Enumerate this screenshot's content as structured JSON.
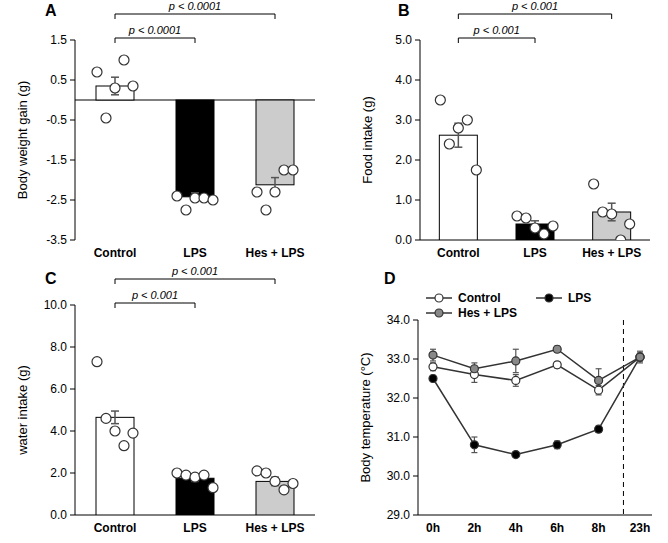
{
  "chart_data": [
    {
      "type": "bar",
      "panel": "A",
      "y_label": "Body weight gain (g)",
      "categories": [
        "Control",
        "LPS",
        "Hes + LPS"
      ],
      "values": [
        0.35,
        -2.42,
        -2.12
      ],
      "errors": [
        0.22,
        0.1,
        0.18
      ],
      "colors": [
        "#ffffff",
        "#000000",
        "#cccccc"
      ],
      "points": [
        [
          0.7,
          -0.45,
          0.3,
          1.0,
          0.35
        ],
        [
          -2.4,
          -2.75,
          -2.45,
          -2.45,
          -2.5
        ],
        [
          -2.3,
          -2.75,
          -2.3,
          -1.75,
          -1.75
        ]
      ],
      "ylim": [
        -3.5,
        1.5
      ],
      "yticks": [
        -3.5,
        -2.5,
        -1.5,
        -0.5,
        0.5,
        1.5
      ],
      "grid": false,
      "annotations": [
        {
          "text": "p < 0.0001",
          "between": [
            "Control",
            "LPS"
          ]
        },
        {
          "text": "p < 0.0001",
          "between": [
            "Control",
            "Hes + LPS"
          ]
        }
      ]
    },
    {
      "type": "bar",
      "panel": "B",
      "y_label": "Food intake (g)",
      "categories": [
        "Control",
        "LPS",
        "Hes + LPS"
      ],
      "values": [
        2.62,
        0.4,
        0.7
      ],
      "errors": [
        0.3,
        0.08,
        0.22
      ],
      "colors": [
        "#ffffff",
        "#000000",
        "#cccccc"
      ],
      "points": [
        [
          3.5,
          2.4,
          2.8,
          3.0,
          1.75
        ],
        [
          0.6,
          0.55,
          0.3,
          0.15,
          0.35
        ],
        [
          1.4,
          0.7,
          0.65,
          0.0,
          0.4
        ]
      ],
      "ylim": [
        0,
        5
      ],
      "yticks": [
        {
          "value": 0,
          "label": "0.0"
        },
        {
          "value": 1,
          "label": "1.0"
        },
        {
          "value": 2,
          "label": "2.0"
        },
        {
          "value": 3,
          "label": "3.0"
        },
        {
          "value": 4,
          "label": "4.0"
        },
        {
          "value": 5,
          "label": "5.0"
        }
      ],
      "grid": false,
      "annotations": [
        {
          "text": "p < 0.001",
          "between": [
            "Control",
            "LPS"
          ]
        },
        {
          "text": "p < 0.001",
          "between": [
            "Control",
            "Hes + LPS"
          ]
        }
      ]
    },
    {
      "type": "bar",
      "panel": "C",
      "y_label": "water intake (g)",
      "categories": [
        "Control",
        "LPS",
        "Hes + LPS"
      ],
      "values": [
        4.65,
        1.75,
        1.6
      ],
      "errors": [
        0.3,
        0.15,
        0.2
      ],
      "colors": [
        "#ffffff",
        "#000000",
        "#cccccc"
      ],
      "points": [
        [
          7.3,
          4.6,
          4.0,
          3.3,
          3.9
        ],
        [
          2.0,
          1.9,
          1.8,
          1.9,
          1.3
        ],
        [
          2.1,
          2.0,
          1.6,
          1.2,
          1.5
        ]
      ],
      "ylim": [
        0,
        10
      ],
      "yticks": [
        {
          "value": 0,
          "label": "0.0"
        },
        {
          "value": 2,
          "label": "2.0"
        },
        {
          "value": 4,
          "label": "4.0"
        },
        {
          "value": 6,
          "label": "6.0"
        },
        {
          "value": 8,
          "label": "8.0"
        },
        {
          "value": 10,
          "label": "10.0"
        }
      ],
      "grid": false,
      "annotations": [
        {
          "text": "p < 0.001",
          "between": [
            "Control",
            "LPS"
          ]
        },
        {
          "text": "p < 0.001",
          "between": [
            "Control",
            "Hes + LPS"
          ]
        }
      ]
    },
    {
      "type": "line",
      "panel": "D",
      "y_label": "Body temperature (°C)",
      "categories": [
        "0h",
        "2h",
        "4h",
        "6h",
        "8h",
        "23h"
      ],
      "series": [
        {
          "name": "Control",
          "color": "#ffffff",
          "marker": "circle",
          "values": [
            32.8,
            32.6,
            32.45,
            32.85,
            32.2,
            33.05
          ],
          "errors": [
            0.1,
            0.2,
            0.15,
            0.08,
            0.12,
            0.1
          ]
        },
        {
          "name": "LPS",
          "color": "#000000",
          "marker": "circle",
          "values": [
            32.5,
            30.8,
            30.55,
            30.8,
            31.2,
            33.05
          ],
          "errors": [
            0.08,
            0.2,
            0.05,
            0.1,
            0.08,
            0.1
          ]
        },
        {
          "name": "Hes + LPS",
          "color": "#888888",
          "marker": "circle",
          "values": [
            33.1,
            32.75,
            32.95,
            33.25,
            32.45,
            33.05
          ],
          "errors": [
            0.15,
            0.15,
            0.3,
            0.08,
            0.3,
            0.15
          ]
        }
      ],
      "ylim": [
        29,
        34
      ],
      "yticks": [
        {
          "value": 29,
          "label": "29.0"
        },
        {
          "value": 30,
          "label": "30.0"
        },
        {
          "value": 31,
          "label": "31.0"
        },
        {
          "value": 32,
          "label": "32.0"
        },
        {
          "value": 33,
          "label": "33.0"
        },
        {
          "value": 34,
          "label": "34.0"
        }
      ],
      "grid": false,
      "legend": "top"
    }
  ]
}
